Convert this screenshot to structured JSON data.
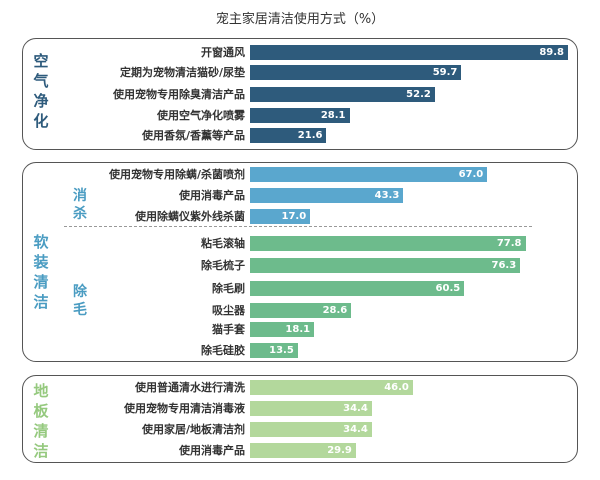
{
  "chart_data": {
    "type": "bar",
    "orientation": "horizontal",
    "title": "宠主家居清洁使用方式（%）",
    "groups": [
      {
        "name": "空气净化",
        "color": "#2e5b7c",
        "subgroups": [
          {
            "name": "",
            "categories": [
              "开窗通风",
              "定期为宠物清洁猫砂/尿垫",
              "使用宠物专用除臭清洁产品",
              "使用空气净化喷雾",
              "使用香氛/香薰等产品"
            ],
            "values": [
              89.8,
              59.7,
              52.2,
              28.1,
              21.6
            ]
          }
        ]
      },
      {
        "name": "软装清洁",
        "color": "#4a9cc2",
        "subgroups": [
          {
            "name": "消杀",
            "color": "#5aa7ce",
            "categories": [
              "使用宠物专用除螨/杀菌喷剂",
              "使用消毒产品",
              "使用除螨仪紫外线杀菌"
            ],
            "values": [
              67.0,
              43.3,
              17.0
            ]
          },
          {
            "name": "除毛",
            "color": "#6dbb8c",
            "categories": [
              "粘毛滚轴",
              "除毛梳子",
              "除毛刷",
              "吸尘器",
              "猫手套",
              "除毛硅胶"
            ],
            "values": [
              77.8,
              76.3,
              60.5,
              28.6,
              18.1,
              13.5
            ]
          }
        ]
      },
      {
        "name": "地板清洁",
        "color": "#b3d89c",
        "subgroups": [
          {
            "name": "",
            "categories": [
              "使用普通清水进行清洗",
              "使用宠物专用清洁消毒液",
              "使用家居/地板清洁剂",
              "使用消毒产品"
            ],
            "values": [
              46.0,
              34.4,
              34.4,
              29.9
            ]
          }
        ]
      }
    ],
    "xlim": [
      0,
      89.8
    ],
    "grid": false,
    "legend": "none"
  }
}
